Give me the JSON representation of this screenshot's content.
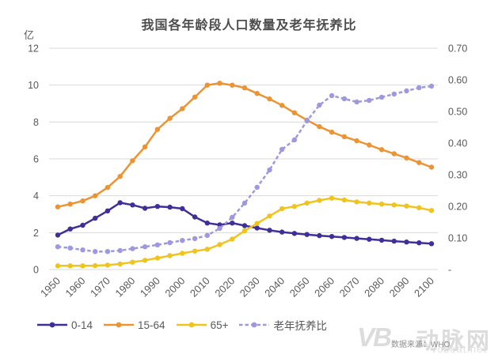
{
  "chart_data": {
    "type": "line",
    "title": "我国各年龄段人口数量及老年抚养比",
    "unit_label": "亿",
    "grid": "horizontal",
    "grid_color": "#d9d9d9",
    "text_color": "#595959",
    "legend_position": "bottom",
    "x": [
      1950,
      1955,
      1960,
      1965,
      1970,
      1975,
      1980,
      1985,
      1990,
      1995,
      2000,
      2005,
      2010,
      2015,
      2020,
      2025,
      2030,
      2035,
      2040,
      2045,
      2050,
      2055,
      2060,
      2065,
      2070,
      2075,
      2080,
      2085,
      2090,
      2095,
      2100
    ],
    "x_tick_labels": [
      "1950",
      "1960",
      "1970",
      "1980",
      "1990",
      "2000",
      "2010",
      "2020",
      "2030",
      "2040",
      "2050",
      "2060",
      "2070",
      "2080",
      "2090",
      "2100"
    ],
    "axis_left": {
      "min": 0,
      "max": 12,
      "tick_step": 2,
      "tick_labels": [
        "0",
        "2",
        "4",
        "6",
        "8",
        "10",
        "12"
      ]
    },
    "axis_right": {
      "min": 0,
      "max": 0.7,
      "tick_step": 0.1,
      "tick_labels": [
        "-",
        "0.10",
        "0.20",
        "0.30",
        "0.40",
        "0.50",
        "0.60",
        "0.70"
      ]
    },
    "series": [
      {
        "name": "0-14",
        "axis": "left",
        "style": "solid",
        "color": "#3f2f99",
        "values": [
          1.87,
          2.2,
          2.4,
          2.78,
          3.18,
          3.62,
          3.5,
          3.32,
          3.42,
          3.38,
          3.3,
          2.85,
          2.52,
          2.42,
          2.52,
          2.38,
          2.25,
          2.13,
          2.03,
          1.96,
          1.9,
          1.84,
          1.79,
          1.74,
          1.69,
          1.64,
          1.59,
          1.54,
          1.49,
          1.45,
          1.4
        ]
      },
      {
        "name": "15-64",
        "axis": "left",
        "style": "solid",
        "color": "#ec9434",
        "values": [
          3.4,
          3.55,
          3.72,
          4.0,
          4.45,
          5.05,
          5.9,
          6.65,
          7.6,
          8.2,
          8.72,
          9.35,
          10.0,
          10.1,
          10.0,
          9.85,
          9.55,
          9.25,
          8.9,
          8.5,
          8.1,
          7.75,
          7.45,
          7.2,
          6.98,
          6.75,
          6.5,
          6.28,
          6.05,
          5.8,
          5.55
        ]
      },
      {
        "name": "65+",
        "axis": "left",
        "style": "solid",
        "color": "#f0c41e",
        "values": [
          0.2,
          0.2,
          0.2,
          0.21,
          0.24,
          0.3,
          0.4,
          0.5,
          0.62,
          0.75,
          0.88,
          1.0,
          1.1,
          1.35,
          1.65,
          2.1,
          2.5,
          2.9,
          3.3,
          3.42,
          3.6,
          3.75,
          3.87,
          3.77,
          3.67,
          3.6,
          3.55,
          3.5,
          3.44,
          3.35,
          3.2
        ]
      },
      {
        "name": "老年抚养比",
        "axis": "right",
        "style": "dashed",
        "color": "#9e99df",
        "values": [
          0.072,
          0.068,
          0.062,
          0.057,
          0.057,
          0.06,
          0.066,
          0.072,
          0.078,
          0.085,
          0.092,
          0.098,
          0.108,
          0.13,
          0.165,
          0.21,
          0.26,
          0.315,
          0.38,
          0.41,
          0.47,
          0.52,
          0.55,
          0.54,
          0.53,
          0.535,
          0.545,
          0.555,
          0.565,
          0.575,
          0.58
        ]
      }
    ]
  },
  "source": "数据来源：WHO",
  "watermark": {
    "logo": "VB",
    "name": "动脉网",
    "domain": "vcbeat.net"
  }
}
